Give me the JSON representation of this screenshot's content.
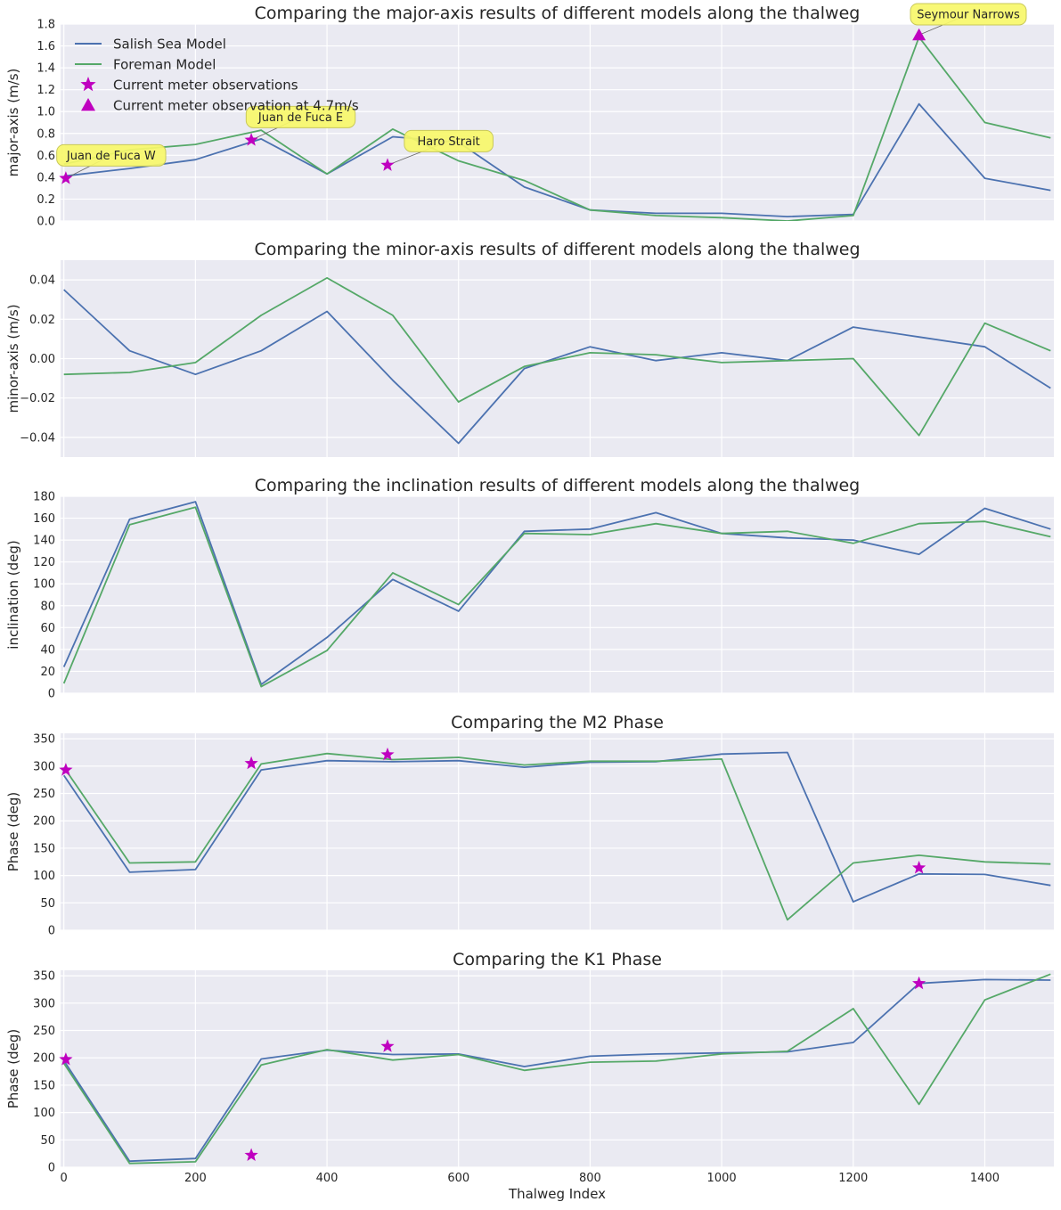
{
  "colors": {
    "salish": "#4c72b0",
    "foreman": "#55a868",
    "obs": "#bf00bf",
    "annot_bg": "#f7f76a",
    "plot_bg": "#eaeaf2"
  },
  "legend": {
    "position": "top-left",
    "entries": [
      {
        "label": "Salish Sea Model",
        "kind": "line",
        "color_key": "salish"
      },
      {
        "label": "Foreman Model",
        "kind": "line",
        "color_key": "foreman"
      },
      {
        "label": "Current meter observations",
        "kind": "star",
        "color_key": "obs"
      },
      {
        "label": "Current meter observation at 4.7m/s",
        "kind": "triangle",
        "color_key": "obs"
      }
    ]
  },
  "chart_data": [
    {
      "type": "line",
      "title": "Comparing the major-axis results of different models along the thalweg",
      "xlabel": "",
      "ylabel": "major-axis (m/s)",
      "xlim": [
        -5,
        1505
      ],
      "ylim": [
        0,
        1.8
      ],
      "yticks": [
        0.0,
        0.2,
        0.4,
        0.6,
        0.8,
        1.0,
        1.2,
        1.4,
        1.6,
        1.8
      ],
      "ytick_labels": [
        "0.0",
        "0.2",
        "0.4",
        "0.6",
        "0.8",
        "1.0",
        "1.2",
        "1.4",
        "1.6",
        "1.8"
      ],
      "xticks": [
        0,
        200,
        400,
        600,
        800,
        1000,
        1200,
        1400
      ],
      "grid": true,
      "show_xtick_labels": false,
      "show_legend": true,
      "series": [
        {
          "name": "Salish Sea Model",
          "color_key": "salish",
          "x": [
            0,
            100,
            200,
            300,
            400,
            500,
            600,
            700,
            800,
            900,
            1000,
            1100,
            1200,
            1300,
            1400,
            1500
          ],
          "y": [
            0.41,
            0.48,
            0.56,
            0.75,
            0.43,
            0.77,
            0.72,
            0.31,
            0.1,
            0.07,
            0.07,
            0.04,
            0.06,
            1.07,
            0.39,
            0.28
          ]
        },
        {
          "name": "Foreman Model",
          "color_key": "foreman",
          "x": [
            0,
            100,
            200,
            300,
            400,
            500,
            600,
            700,
            800,
            900,
            1000,
            1100,
            1200,
            1300,
            1400,
            1500
          ],
          "y": [
            0.52,
            0.65,
            0.7,
            0.83,
            0.43,
            0.84,
            0.55,
            0.37,
            0.1,
            0.05,
            0.03,
            0.0,
            0.05,
            1.68,
            0.9,
            0.76
          ]
        }
      ],
      "markers": [
        {
          "kind": "star",
          "x": [
            3,
            285,
            492
          ],
          "y": [
            0.39,
            0.74,
            0.51
          ]
        },
        {
          "kind": "triangle",
          "x": [
            1300
          ],
          "y": [
            1.7
          ]
        }
      ],
      "annotations": [
        {
          "text": "Juan de Fuca W",
          "x": 3,
          "y": 0.39,
          "tx": 72,
          "ty": 0.6
        },
        {
          "text": "Juan de Fuca E",
          "x": 285,
          "y": 0.74,
          "tx": 360,
          "ty": 0.95
        },
        {
          "text": "Haro Strait",
          "x": 492,
          "y": 0.51,
          "tx": 585,
          "ty": 0.73
        },
        {
          "text": "Seymour Narrows",
          "x": 1300,
          "y": 1.7,
          "tx": 1375,
          "ty": 1.89
        }
      ]
    },
    {
      "type": "line",
      "title": "Comparing the minor-axis results of different models along the thalweg",
      "xlabel": "",
      "ylabel": "minor-axis (m/s)",
      "xlim": [
        -5,
        1505
      ],
      "ylim": [
        -0.05,
        0.05
      ],
      "yticks": [
        -0.04,
        -0.02,
        0.0,
        0.02,
        0.04
      ],
      "ytick_labels": [
        "−0.04",
        "−0.02",
        "0.00",
        "0.02",
        "0.04"
      ],
      "xticks": [
        0,
        200,
        400,
        600,
        800,
        1000,
        1200,
        1400
      ],
      "grid": true,
      "show_xtick_labels": false,
      "series": [
        {
          "name": "Salish Sea Model",
          "color_key": "salish",
          "x": [
            0,
            100,
            200,
            300,
            400,
            500,
            600,
            700,
            800,
            900,
            1000,
            1100,
            1200,
            1300,
            1400,
            1500
          ],
          "y": [
            0.035,
            0.004,
            -0.008,
            0.004,
            0.024,
            -0.011,
            -0.043,
            -0.005,
            0.006,
            -0.001,
            0.003,
            -0.001,
            0.016,
            0.011,
            0.006,
            -0.015
          ]
        },
        {
          "name": "Foreman Model",
          "color_key": "foreman",
          "x": [
            0,
            100,
            200,
            300,
            400,
            500,
            600,
            700,
            800,
            900,
            1000,
            1100,
            1200,
            1300,
            1400,
            1500
          ],
          "y": [
            -0.008,
            -0.007,
            -0.002,
            0.022,
            0.041,
            0.022,
            -0.022,
            -0.004,
            0.003,
            0.002,
            -0.002,
            -0.001,
            0.0,
            -0.039,
            0.018,
            0.004
          ]
        }
      ],
      "markers": [],
      "annotations": []
    },
    {
      "type": "line",
      "title": "Comparing the inclination results of different models along the thalweg",
      "xlabel": "",
      "ylabel": "inclination (deg)",
      "xlim": [
        -5,
        1505
      ],
      "ylim": [
        0,
        180
      ],
      "yticks": [
        0,
        20,
        40,
        60,
        80,
        100,
        120,
        140,
        160,
        180
      ],
      "ytick_labels": [
        "0",
        "20",
        "40",
        "60",
        "80",
        "100",
        "120",
        "140",
        "160",
        "180"
      ],
      "xticks": [
        0,
        200,
        400,
        600,
        800,
        1000,
        1200,
        1400
      ],
      "grid": true,
      "show_xtick_labels": false,
      "series": [
        {
          "name": "Salish Sea Model",
          "color_key": "salish",
          "x": [
            0,
            100,
            200,
            300,
            400,
            500,
            600,
            700,
            800,
            900,
            1000,
            1100,
            1200,
            1300,
            1400,
            1500
          ],
          "y": [
            24,
            159,
            175,
            8,
            51,
            104,
            75,
            148,
            150,
            165,
            146,
            142,
            140,
            127,
            169,
            150
          ]
        },
        {
          "name": "Foreman Model",
          "color_key": "foreman",
          "x": [
            0,
            100,
            200,
            300,
            400,
            500,
            600,
            700,
            800,
            900,
            1000,
            1100,
            1200,
            1300,
            1400,
            1500
          ],
          "y": [
            9,
            154,
            170,
            6,
            39,
            110,
            81,
            146,
            145,
            155,
            146,
            148,
            137,
            155,
            157,
            143
          ]
        }
      ],
      "markers": [],
      "annotations": []
    },
    {
      "type": "line",
      "title": "Comparing the M2 Phase",
      "xlabel": "",
      "ylabel": "Phase (deg)",
      "xlim": [
        -5,
        1505
      ],
      "ylim": [
        0,
        360
      ],
      "yticks": [
        0,
        50,
        100,
        150,
        200,
        250,
        300,
        350
      ],
      "ytick_labels": [
        "0",
        "50",
        "100",
        "150",
        "200",
        "250",
        "300",
        "350"
      ],
      "xticks": [
        0,
        200,
        400,
        600,
        800,
        1000,
        1200,
        1400
      ],
      "grid": true,
      "show_xtick_labels": false,
      "series": [
        {
          "name": "Salish Sea Model",
          "color_key": "salish",
          "x": [
            0,
            100,
            200,
            300,
            400,
            500,
            600,
            700,
            800,
            900,
            1000,
            1100,
            1200,
            1300,
            1400,
            1500
          ],
          "y": [
            283,
            106,
            111,
            293,
            310,
            308,
            310,
            298,
            307,
            308,
            322,
            325,
            52,
            103,
            102,
            82
          ]
        },
        {
          "name": "Foreman Model",
          "color_key": "foreman",
          "x": [
            0,
            100,
            200,
            300,
            400,
            500,
            600,
            700,
            800,
            900,
            1000,
            1100,
            1200,
            1300,
            1400,
            1500
          ],
          "y": [
            298,
            123,
            125,
            304,
            323,
            312,
            316,
            302,
            309,
            309,
            313,
            19,
            123,
            137,
            125,
            121
          ]
        }
      ],
      "markers": [
        {
          "kind": "star",
          "x": [
            3,
            285,
            492,
            1300
          ],
          "y": [
            293,
            305,
            321,
            114
          ]
        }
      ],
      "annotations": []
    },
    {
      "type": "line",
      "title": "Comparing the K1 Phase",
      "xlabel": "Thalweg Index",
      "ylabel": "Phase (deg)",
      "xlim": [
        -5,
        1505
      ],
      "ylim": [
        0,
        360
      ],
      "yticks": [
        0,
        50,
        100,
        150,
        200,
        250,
        300,
        350
      ],
      "ytick_labels": [
        "0",
        "50",
        "100",
        "150",
        "200",
        "250",
        "300",
        "350"
      ],
      "xticks": [
        0,
        200,
        400,
        600,
        800,
        1000,
        1200,
        1400
      ],
      "xtick_labels": [
        "0",
        "200",
        "400",
        "600",
        "800",
        "1000",
        "1200",
        "1400"
      ],
      "grid": true,
      "show_xtick_labels": true,
      "series": [
        {
          "name": "Salish Sea Model",
          "color_key": "salish",
          "x": [
            0,
            100,
            200,
            300,
            400,
            500,
            600,
            700,
            800,
            900,
            1000,
            1100,
            1200,
            1300,
            1400,
            1500
          ],
          "y": [
            195,
            11,
            16,
            198,
            214,
            206,
            207,
            184,
            203,
            207,
            209,
            211,
            228,
            336,
            343,
            342
          ]
        },
        {
          "name": "Foreman Model",
          "color_key": "foreman",
          "x": [
            0,
            100,
            200,
            300,
            400,
            500,
            600,
            700,
            800,
            900,
            1000,
            1100,
            1200,
            1300,
            1400,
            1500
          ],
          "y": [
            190,
            7,
            10,
            187,
            215,
            196,
            206,
            177,
            192,
            194,
            207,
            212,
            290,
            115,
            306,
            353
          ]
        }
      ],
      "markers": [
        {
          "kind": "star",
          "x": [
            3,
            285,
            492,
            1300
          ],
          "y": [
            197,
            22,
            221,
            336
          ]
        }
      ],
      "annotations": []
    }
  ]
}
